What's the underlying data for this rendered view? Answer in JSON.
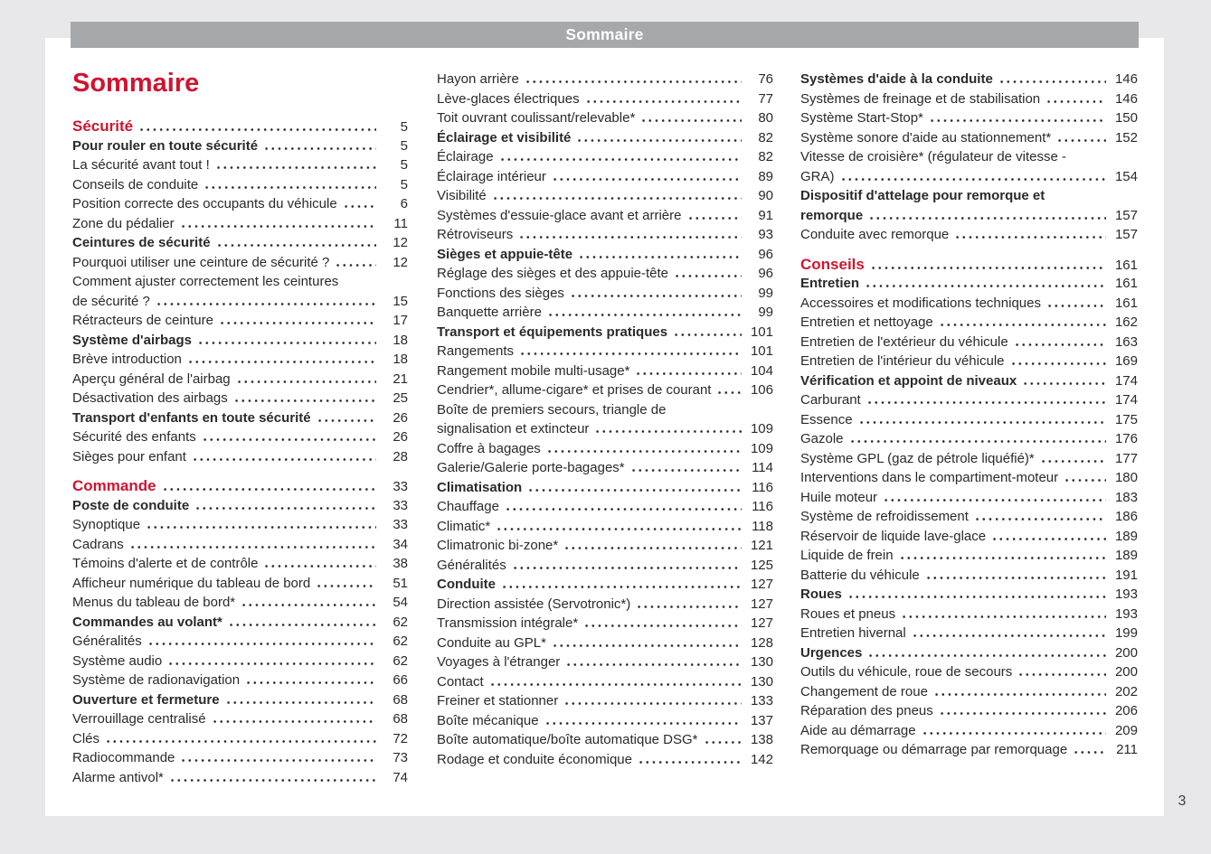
{
  "page": {
    "header_bar_title": "Sommaire",
    "title": "Sommaire",
    "page_number": "3",
    "colors": {
      "accent_red": "#d0142f",
      "header_bar_gray": "#a6a8ab",
      "canvas_gray": "#e8e8ea",
      "text_ink": "#2a2a2a"
    }
  },
  "toc": {
    "columns": [
      [
        {
          "text": "Sécurité",
          "page": "5",
          "style": "red"
        },
        {
          "text": "Pour rouler en toute sécurité",
          "page": "5",
          "style": "bold"
        },
        {
          "text": "La sécurité avant tout !",
          "page": "5"
        },
        {
          "text": "Conseils de conduite",
          "page": "5"
        },
        {
          "text": "Position correcte des occupants du véhicule",
          "page": "6"
        },
        {
          "text": "Zone du pédalier",
          "page": "11"
        },
        {
          "text": "Ceintures de sécurité",
          "page": "12",
          "style": "bold"
        },
        {
          "text": "Pourquoi utiliser une ceinture de sécurité ?",
          "page": "12"
        },
        {
          "text": "Comment ajuster correctement les ceintures",
          "page": ""
        },
        {
          "text": "de sécurité ?",
          "page": "15"
        },
        {
          "text": "Rétracteurs de ceinture",
          "page": "17"
        },
        {
          "text": "Système d'airbags",
          "page": "18",
          "style": "bold"
        },
        {
          "text": "Brève introduction",
          "page": "18"
        },
        {
          "text": "Aperçu général de l'airbag",
          "page": "21"
        },
        {
          "text": "Désactivation des airbags",
          "page": "25"
        },
        {
          "text": "Transport d'enfants en toute sécurité",
          "page": "26",
          "style": "bold"
        },
        {
          "text": "Sécurité des enfants",
          "page": "26"
        },
        {
          "text": "Sièges pour enfant",
          "page": "28"
        },
        {
          "text": "Commande",
          "page": "33",
          "style": "red",
          "gap": true
        },
        {
          "text": "Poste de conduite",
          "page": "33",
          "style": "bold"
        },
        {
          "text": "Synoptique",
          "page": "33"
        },
        {
          "text": "Cadrans",
          "page": "34"
        },
        {
          "text": "Témoins d'alerte et de contrôle",
          "page": "38"
        },
        {
          "text": "Afficheur numérique du tableau de bord",
          "page": "51"
        },
        {
          "text": "Menus du tableau de bord*",
          "page": "54"
        },
        {
          "text": "Commandes au volant*",
          "page": "62",
          "style": "bold"
        },
        {
          "text": "Généralités",
          "page": "62"
        },
        {
          "text": "Système audio",
          "page": "62"
        },
        {
          "text": "Système de radionavigation",
          "page": "66"
        },
        {
          "text": "Ouverture et fermeture",
          "page": "68",
          "style": "bold"
        },
        {
          "text": "Verrouillage centralisé",
          "page": "68"
        },
        {
          "text": "Clés",
          "page": "72"
        },
        {
          "text": "Radiocommande",
          "page": "73"
        },
        {
          "text": "Alarme antivol*",
          "page": "74"
        }
      ],
      [
        {
          "text": "Hayon arrière",
          "page": "76"
        },
        {
          "text": "Lève-glaces électriques",
          "page": "77"
        },
        {
          "text": "Toit ouvrant coulissant/relevable*",
          "page": "80"
        },
        {
          "text": "Éclairage et visibilité",
          "page": "82",
          "style": "bold"
        },
        {
          "text": "Éclairage",
          "page": "82"
        },
        {
          "text": "Éclairage intérieur",
          "page": "89"
        },
        {
          "text": "Visibilité",
          "page": "90"
        },
        {
          "text": "Systèmes d'essuie-glace avant et arrière",
          "page": "91"
        },
        {
          "text": "Rétroviseurs",
          "page": "93"
        },
        {
          "text": "Sièges et appuie-tête",
          "page": "96",
          "style": "bold"
        },
        {
          "text": "Réglage des sièges et des appuie-tête",
          "page": "96"
        },
        {
          "text": "Fonctions des sièges",
          "page": "99"
        },
        {
          "text": "Banquette arrière",
          "page": "99"
        },
        {
          "text": "Transport et équipements pratiques",
          "page": "101",
          "style": "bold"
        },
        {
          "text": "Rangements",
          "page": "101"
        },
        {
          "text": "Rangement mobile multi-usage*",
          "page": "104"
        },
        {
          "text": "Cendrier*, allume-cigare* et prises de courant",
          "page": "106"
        },
        {
          "text": "Boîte de premiers secours, triangle de",
          "page": ""
        },
        {
          "text": "signalisation et extincteur",
          "page": "109"
        },
        {
          "text": "Coffre à bagages",
          "page": "109"
        },
        {
          "text": "Galerie/Galerie porte-bagages*",
          "page": "114"
        },
        {
          "text": "Climatisation",
          "page": "116",
          "style": "bold"
        },
        {
          "text": "Chauffage",
          "page": "116"
        },
        {
          "text": "Climatic*",
          "page": "118"
        },
        {
          "text": "Climatronic bi-zone*",
          "page": "121"
        },
        {
          "text": "Généralités",
          "page": "125"
        },
        {
          "text": "Conduite",
          "page": "127",
          "style": "bold"
        },
        {
          "text": "Direction assistée (Servotronic*)",
          "page": "127"
        },
        {
          "text": "Transmission intégrale*",
          "page": "127"
        },
        {
          "text": "Conduite au GPL*",
          "page": "128"
        },
        {
          "text": "Voyages à l'étranger",
          "page": "130"
        },
        {
          "text": "Contact",
          "page": "130"
        },
        {
          "text": "Freiner et stationner",
          "page": "133"
        },
        {
          "text": "Boîte mécanique",
          "page": "137"
        },
        {
          "text": "Boîte automatique/boîte automatique DSG*",
          "page": "138"
        },
        {
          "text": "Rodage et conduite économique",
          "page": "142"
        }
      ],
      [
        {
          "text": "Systèmes d'aide à la conduite",
          "page": "146",
          "style": "bold"
        },
        {
          "text": "Systèmes de freinage et de stabilisation",
          "page": "146"
        },
        {
          "text": "Système Start-Stop*",
          "page": "150"
        },
        {
          "text": "Système sonore d'aide au stationnement*",
          "page": "152"
        },
        {
          "text": "Vitesse de croisière* (régulateur de vitesse -",
          "page": ""
        },
        {
          "text": "GRA)",
          "page": "154"
        },
        {
          "text": "Dispositif d'attelage pour remorque et",
          "page": "",
          "style": "bold"
        },
        {
          "text": "remorque",
          "page": "157",
          "style": "bold"
        },
        {
          "text": "Conduite avec remorque",
          "page": "157"
        },
        {
          "text": "Conseils",
          "page": "161",
          "style": "red",
          "gap": true
        },
        {
          "text": "Entretien",
          "page": "161",
          "style": "bold"
        },
        {
          "text": "Accessoires et modifications techniques",
          "page": "161"
        },
        {
          "text": "Entretien et nettoyage",
          "page": "162"
        },
        {
          "text": "Entretien de l'extérieur du véhicule",
          "page": "163"
        },
        {
          "text": "Entretien de l'intérieur du véhicule",
          "page": "169"
        },
        {
          "text": "Vérification et appoint de niveaux",
          "page": "174",
          "style": "bold"
        },
        {
          "text": "Carburant",
          "page": "174"
        },
        {
          "text": "Essence",
          "page": "175"
        },
        {
          "text": "Gazole",
          "page": "176"
        },
        {
          "text": "Système GPL (gaz de pétrole liquéfié)*",
          "page": "177"
        },
        {
          "text": "Interventions dans le compartiment-moteur",
          "page": "180"
        },
        {
          "text": "Huile moteur",
          "page": "183"
        },
        {
          "text": "Système de refroidissement",
          "page": "186"
        },
        {
          "text": "Réservoir de liquide lave-glace",
          "page": "189"
        },
        {
          "text": "Liquide de frein",
          "page": "189"
        },
        {
          "text": "Batterie du véhicule",
          "page": "191"
        },
        {
          "text": "Roues",
          "page": "193",
          "style": "bold"
        },
        {
          "text": "Roues et pneus",
          "page": "193"
        },
        {
          "text": "Entretien hivernal",
          "page": "199"
        },
        {
          "text": "Urgences",
          "page": "200",
          "style": "bold"
        },
        {
          "text": "Outils du véhicule, roue de secours",
          "page": "200"
        },
        {
          "text": "Changement de roue",
          "page": "202"
        },
        {
          "text": "Réparation des pneus",
          "page": "206"
        },
        {
          "text": "Aide au démarrage",
          "page": "209"
        },
        {
          "text": "Remorquage ou démarrage par remorquage",
          "page": "211"
        }
      ]
    ]
  }
}
